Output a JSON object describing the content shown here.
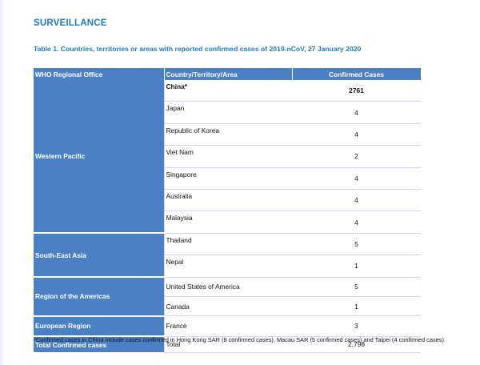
{
  "heading": "SURVEILLANCE",
  "caption": "Table 1. Countries, territories or areas with reported confirmed cases of 2019-nCoV, 27 January 2020",
  "columns": [
    "WHO Regional Office",
    "Country/Territory/Area",
    "Confirmed Cases"
  ],
  "regions": {
    "western_pacific": "Western Pacific",
    "south_east_asia": "South-East Asia",
    "americas": "Region of the Americas",
    "european": "European Region",
    "total": "Total Confirmed cases"
  },
  "rows": [
    {
      "country": "China*",
      "cases": "2761"
    },
    {
      "country": "Japan",
      "cases": "4"
    },
    {
      "country": "Republic of Korea",
      "cases": "4"
    },
    {
      "country": "Viet Nam",
      "cases": "2"
    },
    {
      "country": "Singapore",
      "cases": "4"
    },
    {
      "country": "Australia",
      "cases": "4"
    },
    {
      "country": "Malaysia",
      "cases": "4"
    },
    {
      "country": "Thailand",
      "cases": "5"
    },
    {
      "country": "Nepal",
      "cases": "1"
    },
    {
      "country": "United States of America",
      "cases": "5"
    },
    {
      "country": "Canada",
      "cases": "1"
    },
    {
      "country": "France",
      "cases": "3"
    }
  ],
  "total": {
    "label": "Total",
    "cases": "2,798"
  },
  "footnote": "*Confirmed cases in China include cases confirmed in Hong Kong SAR (8 confirmed cases), Macau SAR (5 confirmed cases) and Taipei (4 confirmed cases).",
  "colors": {
    "accent": "#1f7ac0",
    "header_fill": "#4b80c4",
    "row_rule": "#cfd9ea"
  }
}
